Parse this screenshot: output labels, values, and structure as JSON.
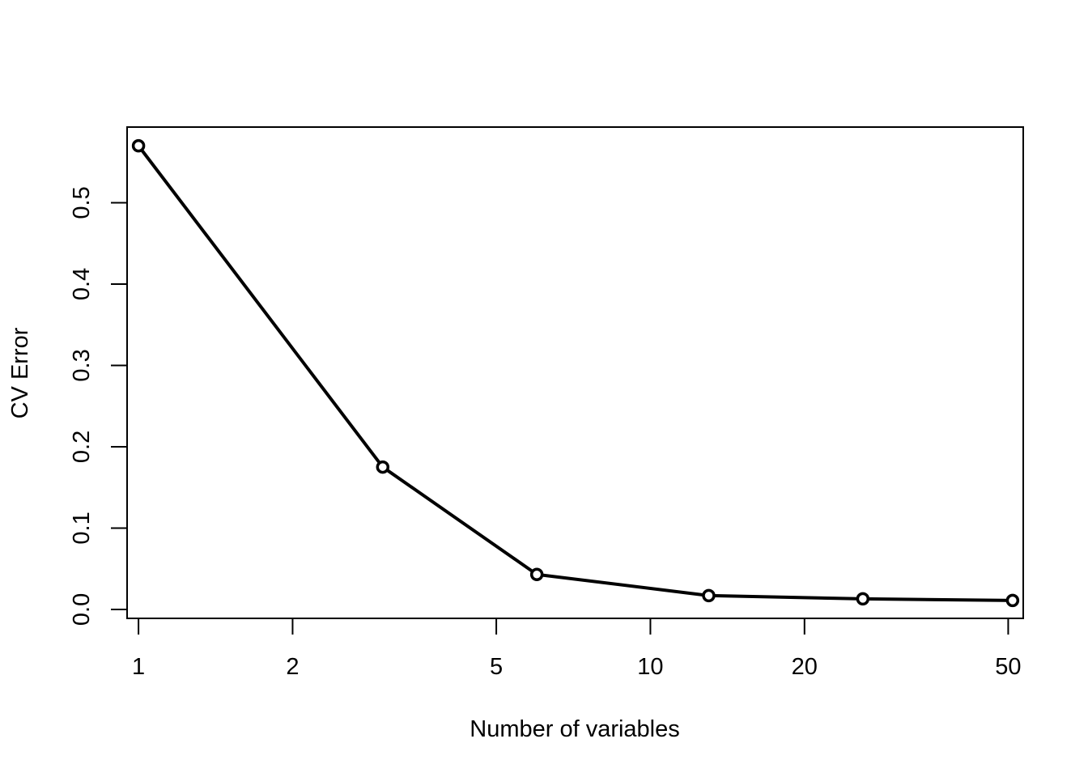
{
  "chart_data": {
    "type": "line",
    "title": "",
    "xlabel": "Number of variables",
    "ylabel": "CV Error",
    "x_scale": "log",
    "xlim": [
      0.95,
      53.5
    ],
    "ylim": [
      -0.011,
      0.593
    ],
    "x_ticks": [
      1,
      2,
      5,
      10,
      20,
      50
    ],
    "x_tick_labels": [
      "1",
      "2",
      "5",
      "10",
      "20",
      "50"
    ],
    "y_ticks": [
      0.0,
      0.1,
      0.2,
      0.3,
      0.4,
      0.5
    ],
    "y_tick_labels": [
      "0.0",
      "0.1",
      "0.2",
      "0.3",
      "0.4",
      "0.5"
    ],
    "grid": false,
    "legend": "none",
    "series": [
      {
        "x": [
          1,
          3,
          6,
          13,
          26,
          51
        ],
        "y": [
          0.57,
          0.175,
          0.043,
          0.017,
          0.013,
          0.011
        ],
        "color": "#000000",
        "marker": "open-circle"
      }
    ]
  }
}
